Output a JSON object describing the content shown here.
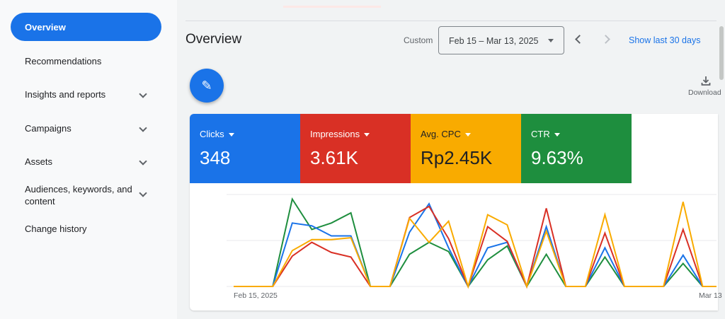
{
  "sidebar": {
    "items": [
      {
        "label": "Overview",
        "active": true
      },
      {
        "label": "Recommendations"
      },
      {
        "label": "Insights and reports",
        "expandable": true
      },
      {
        "label": "Campaigns",
        "expandable": true
      },
      {
        "label": "Assets",
        "expandable": true
      },
      {
        "label": "Audiences, keywords, and content",
        "expandable": true
      },
      {
        "label": "Change history"
      }
    ]
  },
  "header": {
    "title": "Overview",
    "range_label": "Custom",
    "date_range": "Feb 15 – Mar 13, 2025",
    "show_last": "Show last 30 days",
    "download": "Download"
  },
  "metrics": [
    {
      "label": "Clicks",
      "value": "348",
      "color": "#1a73e8"
    },
    {
      "label": "Impressions",
      "value": "3.61K",
      "color": "#d93025"
    },
    {
      "label": "Avg. CPC",
      "value": "Rp2.45K",
      "color": "#f9ab00"
    },
    {
      "label": "CTR",
      "value": "9.63%",
      "color": "#1e8e3e"
    }
  ],
  "chart_data": {
    "type": "line",
    "x_tick_labels": [
      "Feb 15, 2025",
      "Mar 13"
    ],
    "x_start": "Feb 15, 2025",
    "note_scale": "each series on its own unlabeled scale, relative 0-100",
    "ylim": [
      0,
      100
    ],
    "grid": true,
    "series": [
      {
        "name": "Clicks",
        "color": "#1a73e8",
        "values": [
          0,
          0,
          0,
          69,
          66,
          55,
          55,
          0,
          0,
          59,
          90,
          42,
          0,
          42,
          48,
          0,
          65,
          0,
          0,
          42,
          0,
          0,
          0,
          34,
          0,
          0
        ]
      },
      {
        "name": "Impressions",
        "color": "#d93025",
        "values": [
          0,
          0,
          0,
          33,
          48,
          37,
          32,
          0,
          0,
          75,
          87,
          52,
          0,
          65,
          49,
          0,
          85,
          0,
          0,
          58,
          0,
          0,
          0,
          62,
          0,
          0
        ]
      },
      {
        "name": "Avg. CPC",
        "color": "#f9ab00",
        "values": [
          0,
          0,
          0,
          39,
          51,
          51,
          53,
          0,
          0,
          74,
          48,
          71,
          0,
          78,
          67,
          0,
          60,
          0,
          0,
          78,
          0,
          0,
          0,
          92,
          0,
          0
        ]
      },
      {
        "name": "CTR",
        "color": "#1e8e3e",
        "values": [
          0,
          0,
          0,
          95,
          62,
          69,
          80,
          0,
          0,
          35,
          48,
          38,
          0,
          29,
          44,
          0,
          35,
          0,
          0,
          32,
          0,
          0,
          0,
          25,
          0,
          0
        ]
      }
    ]
  }
}
